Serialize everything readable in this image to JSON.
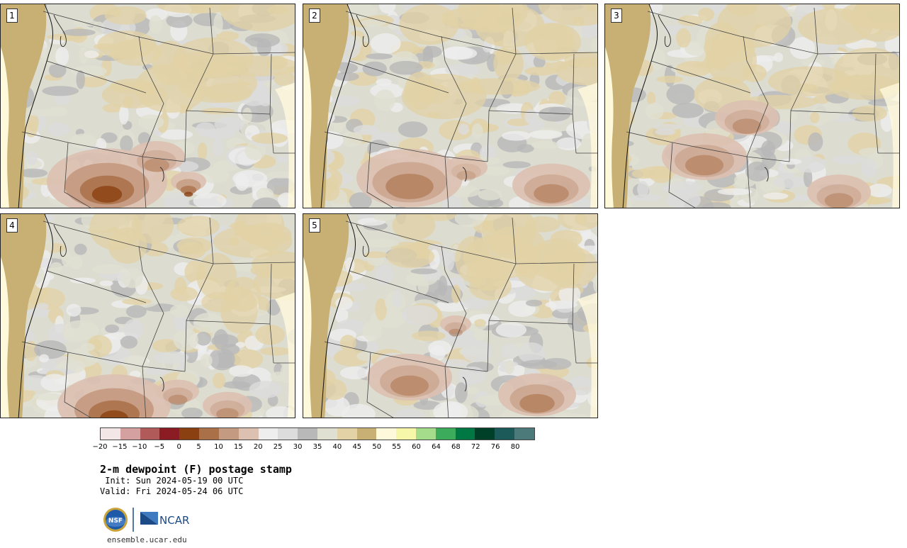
{
  "panels": [
    {
      "label": "1",
      "dry_core": true
    },
    {
      "label": "2",
      "dry_core": true
    },
    {
      "label": "3",
      "dry_core": true
    },
    {
      "label": "4",
      "dry_core": true
    },
    {
      "label": "5",
      "dry_core": true
    }
  ],
  "colorbar": {
    "ticks": [
      "−20",
      "−15",
      "−10",
      "−5",
      "0",
      "5",
      "10",
      "15",
      "20",
      "25",
      "30",
      "35",
      "40",
      "45",
      "50",
      "55",
      "60",
      "64",
      "68",
      "72",
      "76",
      "80"
    ],
    "colors": [
      "#f2e6e6",
      "#d4a0a0",
      "#b05a5a",
      "#8c1c24",
      "#8a4010",
      "#aa7048",
      "#c49a80",
      "#dcc0b0",
      "#eeeeee",
      "#dcdcdc",
      "#b8b8b8",
      "#e0e0d2",
      "#e2d2a6",
      "#c8b074",
      "#fff9dc",
      "#f7f7aa",
      "#a4dc8c",
      "#3cac5c",
      "#007844",
      "#004028",
      "#1c5a5a",
      "#4c7a7a"
    ]
  },
  "title": "2-m dewpoint (F) postage stamp",
  "init": " Init: Sun 2024-05-19 00 UTC",
  "valid": "Valid: Fri 2024-05-24 06 UTC",
  "logos": {
    "nsf": "NSF",
    "ncar": "NCAR"
  },
  "url": "ensemble.ucar.edu"
}
